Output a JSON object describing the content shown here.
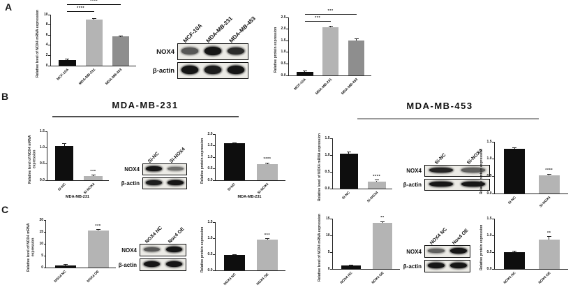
{
  "figure": {
    "panel_labels": {
      "a": "A",
      "b": "B",
      "c": "C"
    },
    "section_headers": {
      "b_left": "MDA-MB-231",
      "b_right": "MDA-MB-453"
    }
  },
  "colors": {
    "bar_black": "#0e0e0e",
    "bar_light_gray": "#b4b4b4",
    "bar_mid_gray": "#8e8e8e",
    "axis": "#222222",
    "underline_left": "#4f4f4f",
    "underline_right": "#9b9b9b"
  },
  "chart_data": [
    {
      "id": "panel-a-mrna",
      "type": "bar",
      "ylabel": "Relative level of NOX4 mRNA expression",
      "categories": [
        "MCF-10A",
        "MDA-MB-231",
        "MDA-MB-453"
      ],
      "values": [
        1.1,
        9.1,
        5.7
      ],
      "errors": [
        0.08,
        0.12,
        0.1
      ],
      "bar_colors": [
        "#0e0e0e",
        "#b4b4b4",
        "#8e8e8e"
      ],
      "ytick_labels": [
        "0",
        "2",
        "4",
        "6",
        "8",
        "10"
      ],
      "ymax": 10,
      "sig_lines": [
        {
          "from": 0,
          "to": 1,
          "y": 10.5,
          "label": "****"
        },
        {
          "from": 0,
          "to": 2,
          "y": 11.9,
          "label": "****"
        }
      ]
    },
    {
      "id": "panel-a-protein",
      "type": "bar",
      "ylabel": "Relative protein expression",
      "categories": [
        "MCF-10A",
        "MDA-MB-231",
        "MDA-MB-453"
      ],
      "values": [
        0.15,
        2.08,
        1.52
      ],
      "errors": [
        0.02,
        0.03,
        0.04
      ],
      "bar_colors": [
        "#0e0e0e",
        "#b4b4b4",
        "#8e8e8e"
      ],
      "ytick_labels": [
        "0.0",
        "0.5",
        "1.0",
        "1.5",
        "2.0",
        "2.5"
      ],
      "ymax": 2.5,
      "sig_lines": [
        {
          "from": 0,
          "to": 1,
          "y": 2.32,
          "label": "***"
        },
        {
          "from": 0,
          "to": 2,
          "y": 2.62,
          "label": "***"
        }
      ]
    },
    {
      "id": "panel-b-231-mrna",
      "type": "bar",
      "ylabel": "Relative level of NOX4 mRNA expression",
      "categories": [
        "Si-NC",
        "Si-NOX4"
      ],
      "values": [
        1.05,
        0.12
      ],
      "errors": [
        0.06,
        0.02
      ],
      "bar_colors": [
        "#0e0e0e",
        "#b4b4b4"
      ],
      "ytick_labels": [
        "0.0",
        "0.5",
        "1.0",
        "1.5"
      ],
      "ymax": 1.5,
      "sig": {
        "bar": 1,
        "label": "***"
      },
      "group_label": "MDA-MB-231"
    },
    {
      "id": "panel-b-231-protein",
      "type": "bar",
      "ylabel": "Relative protein expression",
      "categories": [
        "Si-NC",
        "Si-NOX4"
      ],
      "values": [
        1.6,
        0.7
      ],
      "errors": [
        0.02,
        0.04
      ],
      "bar_colors": [
        "#0e0e0e",
        "#b4b4b4"
      ],
      "ytick_labels": [
        "0.0",
        "0.5",
        "1.0",
        "1.5",
        "2.0"
      ],
      "ymax": 2,
      "sig": {
        "bar": 1,
        "label": "****"
      },
      "group_label": "MDA-MB-231"
    },
    {
      "id": "panel-b-453-mrna",
      "type": "bar",
      "ylabel": "Relative level of NOX4 mRNA expression",
      "categories": [
        "Si-NC",
        "Si-NOX4"
      ],
      "values": [
        1.05,
        0.2
      ],
      "errors": [
        0.03,
        0.04
      ],
      "bar_colors": [
        "#0e0e0e",
        "#b4b4b4"
      ],
      "ytick_labels": [
        "0.0",
        "0.5",
        "1.0",
        "1.5"
      ],
      "ymax": 1.5,
      "sig": {
        "bar": 1,
        "label": "****"
      }
    },
    {
      "id": "panel-b-453-protein",
      "type": "bar",
      "ylabel": "Relative protein expression",
      "categories": [
        "Si-NC",
        "Si-NOX4"
      ],
      "values": [
        1.3,
        0.52
      ],
      "errors": [
        0.02,
        0.03
      ],
      "bar_colors": [
        "#0e0e0e",
        "#b4b4b4"
      ],
      "ytick_labels": [
        "0.0",
        "0.5",
        "1.0",
        "1.5"
      ],
      "ymax": 1.5,
      "sig": {
        "bar": 1,
        "label": "****"
      }
    },
    {
      "id": "panel-c-left-mrna",
      "type": "bar",
      "ylabel": "Relative level of NOX4 mRNA expression",
      "categories": [
        "NOX4 NC",
        "NOX4 OE"
      ],
      "values": [
        1,
        15.5
      ],
      "errors": [
        0.15,
        0.35
      ],
      "bar_colors": [
        "#0e0e0e",
        "#b4b4b4"
      ],
      "ytick_labels": [
        "0",
        "5",
        "10",
        "15",
        "20"
      ],
      "ymax": 20,
      "sig": {
        "bar": 1,
        "label": "***"
      }
    },
    {
      "id": "panel-c-left-protein",
      "type": "bar",
      "ylabel": "Relative protein expression",
      "categories": [
        "NOX4 NC",
        "NOX4 OE"
      ],
      "values": [
        0.47,
        0.95
      ],
      "errors": [
        0.01,
        0.02
      ],
      "bar_colors": [
        "#0e0e0e",
        "#b4b4b4"
      ],
      "ytick_labels": [
        "0.0",
        "0.5",
        "1.0",
        "1.5"
      ],
      "ymax": 1.5,
      "sig": {
        "bar": 1,
        "label": "***"
      }
    },
    {
      "id": "panel-c-right-mrna",
      "type": "bar",
      "ylabel": "Relative level of NOX4 mRNA expression",
      "categories": [
        "NOX4 NC",
        "NOX4 OE"
      ],
      "values": [
        1,
        13.7
      ],
      "errors": [
        0.12,
        0.3
      ],
      "bar_colors": [
        "#0e0e0e",
        "#b4b4b4"
      ],
      "ytick_labels": [
        "0",
        "5",
        "10",
        "15"
      ],
      "ymax": 15,
      "sig": {
        "bar": 1,
        "label": "**"
      }
    },
    {
      "id": "panel-c-right-protein",
      "type": "bar",
      "ylabel": "Relative protein expression",
      "categories": [
        "NOX4 NC",
        "NOX4 OE"
      ],
      "values": [
        0.5,
        0.88
      ],
      "errors": [
        0.02,
        0.07
      ],
      "bar_colors": [
        "#0e0e0e",
        "#b4b4b4"
      ],
      "ytick_labels": [
        "0.0",
        "0.5",
        "1.0",
        "1.5"
      ],
      "ymax": 1.5,
      "sig": {
        "bar": 1,
        "label": "**"
      }
    }
  ],
  "blots": {
    "a": {
      "lanes": [
        "MCF-10A",
        "MDA-MB-231",
        "MDA-MB-453"
      ],
      "rows": [
        {
          "label": "NOX4",
          "bands": [
            0.55,
            1,
            0.85
          ]
        },
        {
          "label": "β-actin",
          "bands": [
            1,
            0.95,
            1
          ]
        }
      ]
    },
    "b231": {
      "lanes": [
        "Si-NC",
        "Si-NOX4"
      ],
      "rows": [
        {
          "label": "NOX4",
          "bands": [
            1,
            0.4
          ]
        },
        {
          "label": "β-actin",
          "bands": [
            0.95,
            1
          ]
        }
      ]
    },
    "b453": {
      "lanes": [
        "Si-NC",
        "Si-NOX4"
      ],
      "rows": [
        {
          "label": "NOX4",
          "bands": [
            0.9,
            0.5
          ]
        },
        {
          "label": "β-actin",
          "bands": [
            1,
            1
          ]
        }
      ]
    },
    "c_left": {
      "lanes": [
        "NOX4 NC",
        "Nox4 OE"
      ],
      "rows": [
        {
          "label": "NOX4",
          "bands": [
            0.55,
            1
          ]
        },
        {
          "label": "β-actin",
          "bands": [
            1,
            1
          ]
        }
      ]
    },
    "c_right": {
      "lanes": [
        "NOX4 NC",
        "Nox4 OE"
      ],
      "rows": [
        {
          "label": "NOX4",
          "bands": [
            0.5,
            1
          ]
        },
        {
          "label": "β-actin",
          "bands": [
            1,
            1
          ]
        }
      ]
    }
  }
}
